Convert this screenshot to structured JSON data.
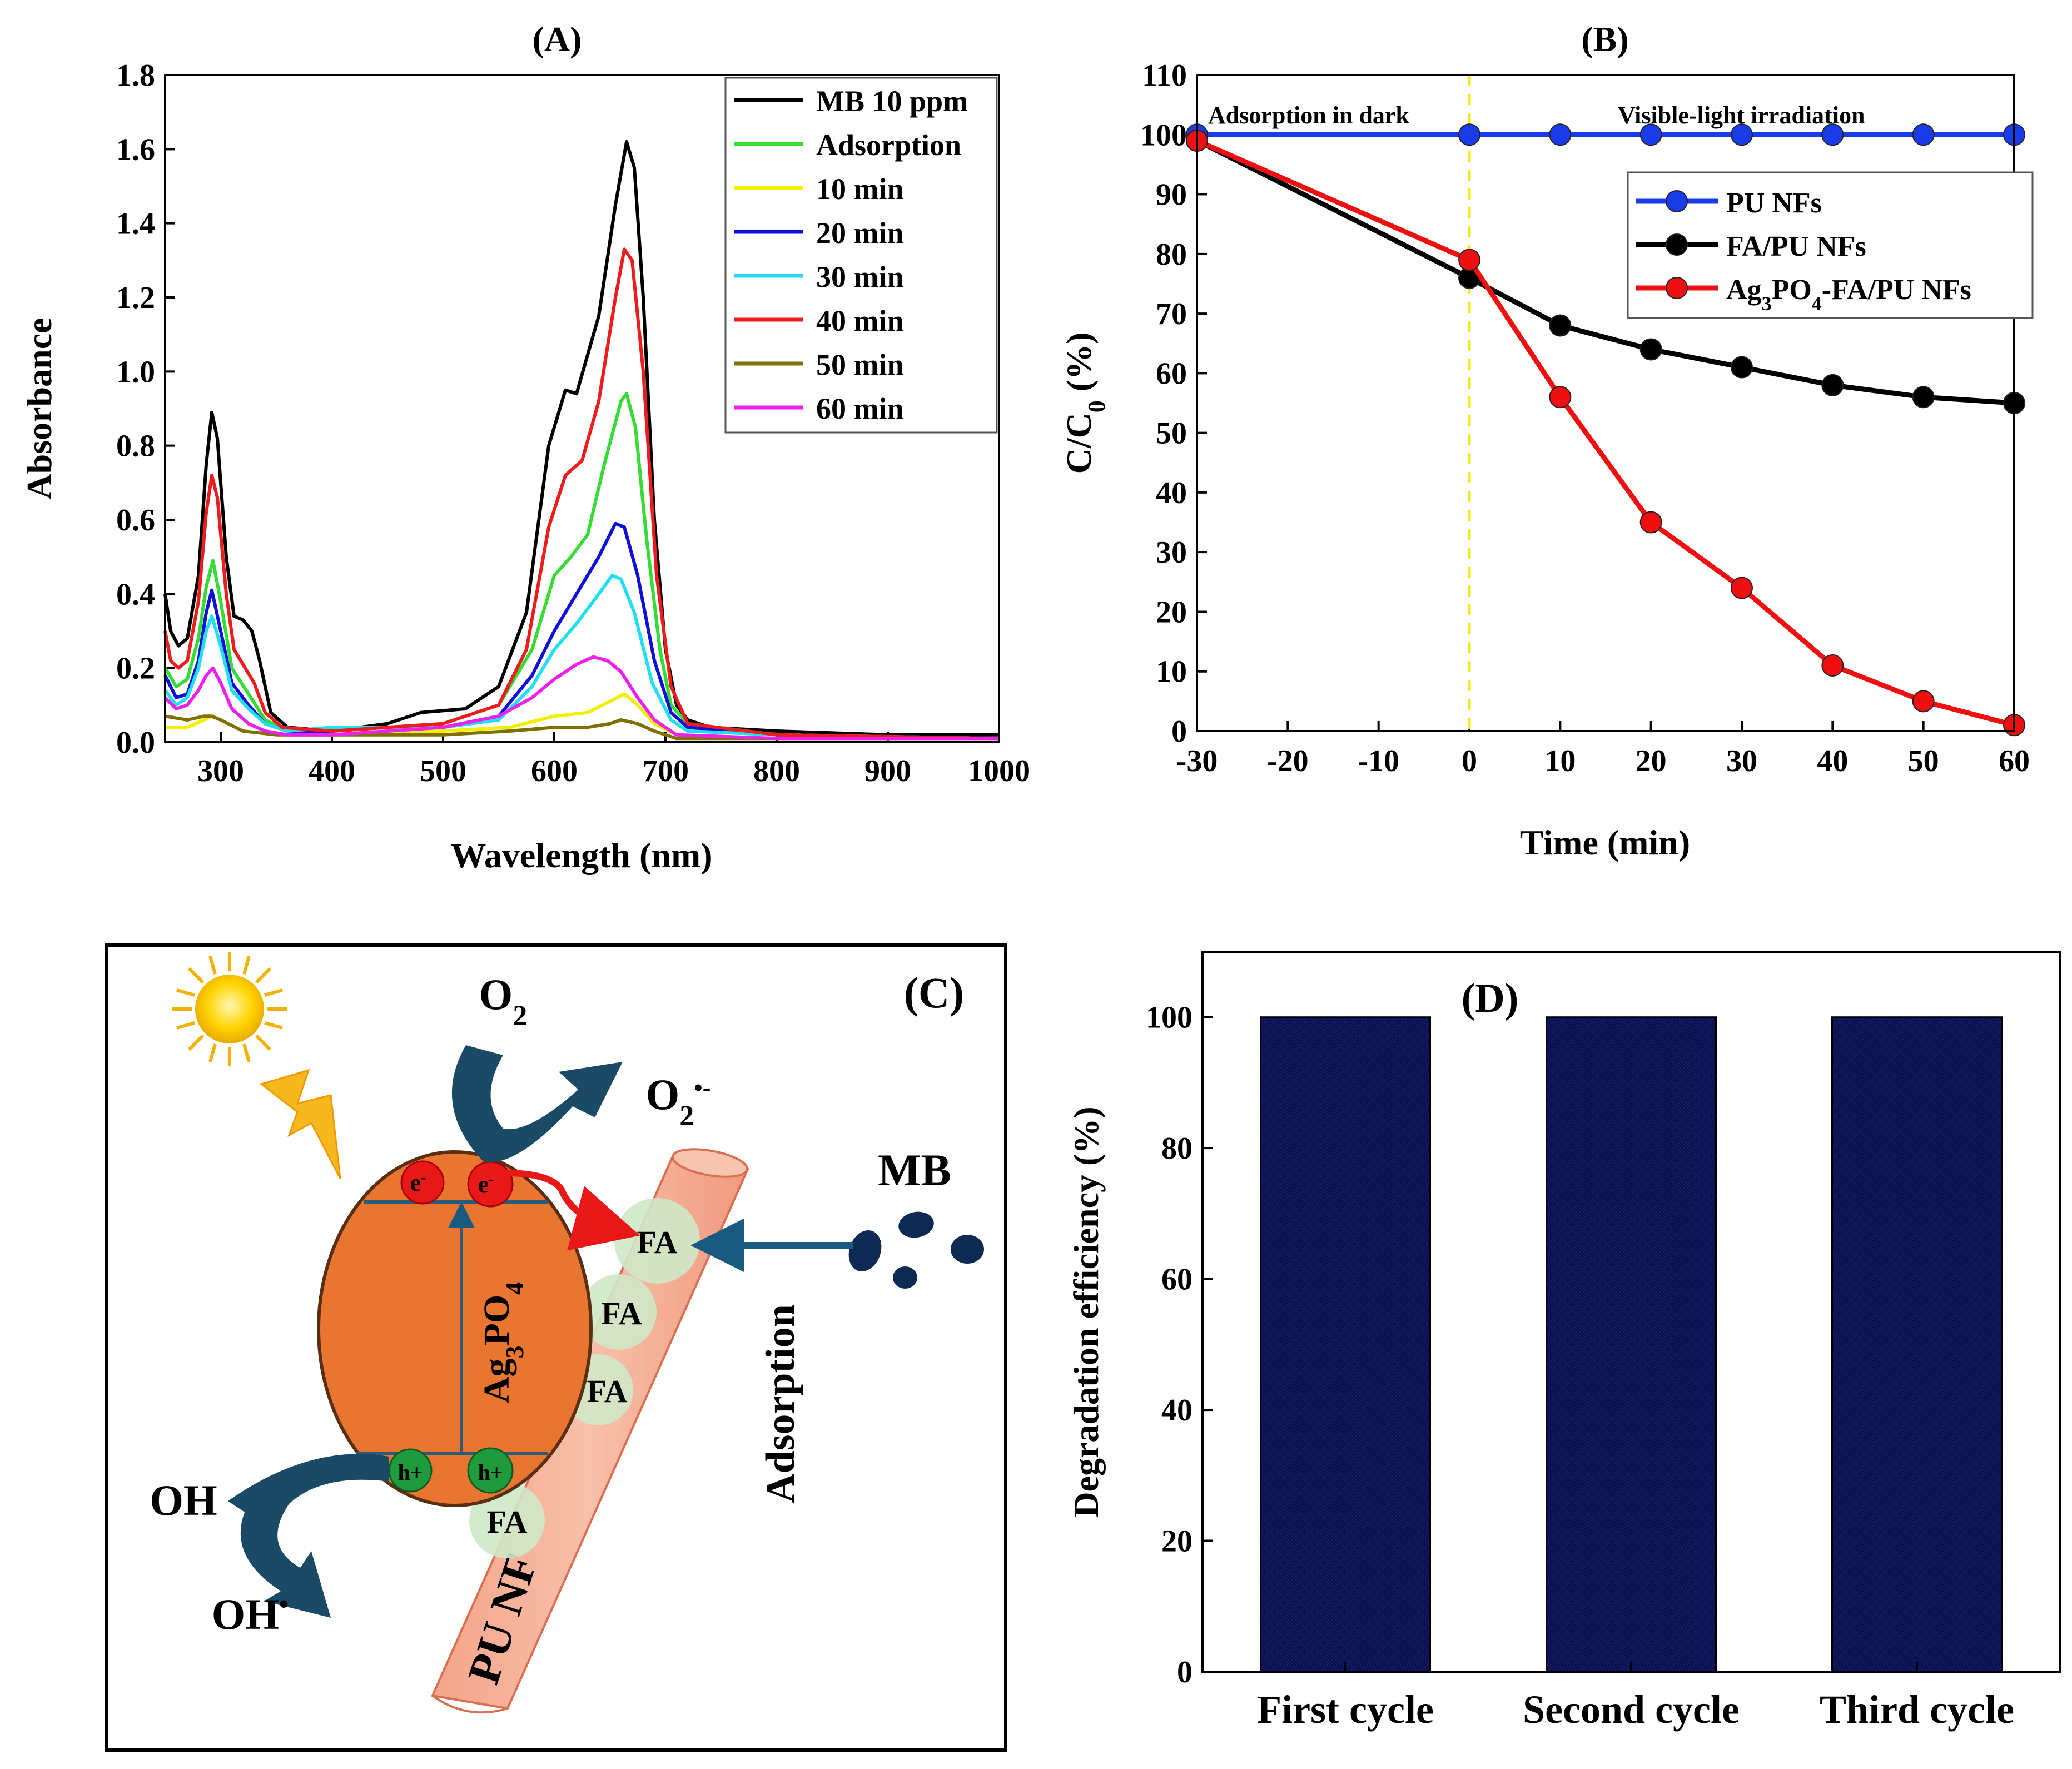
{
  "panels": {
    "A": {
      "label": "(A)"
    },
    "B": {
      "label": "(B)"
    },
    "C": {
      "label": "(C)"
    },
    "D": {
      "label": "(D)"
    }
  },
  "colors": {
    "mb": "#000000",
    "adsorption": "#33dd33",
    "t10": "#f0f000",
    "t20": "#1010d8",
    "t30": "#20e0f0",
    "t40": "#ee1c1c",
    "t50": "#807000",
    "t60": "#ee20ee",
    "pu": "#1a3be8",
    "fa": "#000000",
    "ag": "#ee1010",
    "bar": "#0b0f4f",
    "ag3po4": "#e87530",
    "fiber": "#f4a48a",
    "fa_bubble": "#cfe8c8",
    "arrow_dark": "#1b4a66",
    "hole": "#1f9a3c",
    "electron": "#e81818"
  },
  "chart_data": [
    {
      "id": "A",
      "type": "line",
      "title": "(A)",
      "xlabel": "Wavelength (nm)",
      "ylabel": "Absorbance",
      "xlim": [
        250,
        1000
      ],
      "ylim": [
        0,
        1.8
      ],
      "xticks": [
        300,
        400,
        500,
        600,
        700,
        800,
        900,
        1000
      ],
      "yticks": [
        0.0,
        0.2,
        0.4,
        0.6,
        0.8,
        1.0,
        1.2,
        1.4,
        1.6,
        1.8
      ],
      "legend_position": "top-right",
      "series": [
        {
          "name": "MB 10 ppm",
          "color_key": "mb",
          "points": [
            [
              250,
              0.4
            ],
            [
              255,
              0.3
            ],
            [
              262,
              0.26
            ],
            [
              270,
              0.28
            ],
            [
              280,
              0.45
            ],
            [
              287,
              0.75
            ],
            [
              292,
              0.89
            ],
            [
              297,
              0.82
            ],
            [
              305,
              0.5
            ],
            [
              312,
              0.34
            ],
            [
              320,
              0.33
            ],
            [
              328,
              0.3
            ],
            [
              335,
              0.22
            ],
            [
              345,
              0.08
            ],
            [
              360,
              0.04
            ],
            [
              400,
              0.03
            ],
            [
              450,
              0.05
            ],
            [
              480,
              0.08
            ],
            [
              520,
              0.09
            ],
            [
              550,
              0.15
            ],
            [
              575,
              0.35
            ],
            [
              595,
              0.8
            ],
            [
              610,
              0.95
            ],
            [
              620,
              0.94
            ],
            [
              640,
              1.15
            ],
            [
              655,
              1.45
            ],
            [
              665,
              1.62
            ],
            [
              672,
              1.55
            ],
            [
              680,
              1.2
            ],
            [
              690,
              0.6
            ],
            [
              700,
              0.25
            ],
            [
              710,
              0.1
            ],
            [
              720,
              0.06
            ],
            [
              740,
              0.04
            ],
            [
              800,
              0.03
            ],
            [
              900,
              0.02
            ],
            [
              1000,
              0.02
            ]
          ]
        },
        {
          "name": "Adsorption",
          "color_key": "adsorption",
          "points": [
            [
              250,
              0.2
            ],
            [
              260,
              0.15
            ],
            [
              270,
              0.17
            ],
            [
              280,
              0.28
            ],
            [
              287,
              0.42
            ],
            [
              293,
              0.49
            ],
            [
              300,
              0.38
            ],
            [
              310,
              0.2
            ],
            [
              325,
              0.13
            ],
            [
              340,
              0.06
            ],
            [
              360,
              0.03
            ],
            [
              400,
              0.03
            ],
            [
              450,
              0.04
            ],
            [
              500,
              0.05
            ],
            [
              550,
              0.1
            ],
            [
              580,
              0.25
            ],
            [
              600,
              0.45
            ],
            [
              615,
              0.5
            ],
            [
              630,
              0.56
            ],
            [
              645,
              0.75
            ],
            [
              660,
              0.92
            ],
            [
              665,
              0.94
            ],
            [
              673,
              0.85
            ],
            [
              683,
              0.55
            ],
            [
              695,
              0.25
            ],
            [
              705,
              0.1
            ],
            [
              720,
              0.05
            ],
            [
              800,
              0.02
            ],
            [
              1000,
              0.01
            ]
          ]
        },
        {
          "name": "10 min",
          "color_key": "t10",
          "points": [
            [
              250,
              0.04
            ],
            [
              270,
              0.04
            ],
            [
              285,
              0.06
            ],
            [
              292,
              0.07
            ],
            [
              300,
              0.06
            ],
            [
              320,
              0.03
            ],
            [
              350,
              0.02
            ],
            [
              400,
              0.02
            ],
            [
              500,
              0.03
            ],
            [
              560,
              0.04
            ],
            [
              600,
              0.07
            ],
            [
              630,
              0.08
            ],
            [
              650,
              0.11
            ],
            [
              663,
              0.13
            ],
            [
              675,
              0.1
            ],
            [
              690,
              0.05
            ],
            [
              710,
              0.02
            ],
            [
              800,
              0.01
            ],
            [
              1000,
              0.01
            ]
          ]
        },
        {
          "name": "20 min",
          "color_key": "t20",
          "points": [
            [
              250,
              0.18
            ],
            [
              260,
              0.12
            ],
            [
              270,
              0.13
            ],
            [
              280,
              0.22
            ],
            [
              287,
              0.35
            ],
            [
              292,
              0.41
            ],
            [
              300,
              0.3
            ],
            [
              310,
              0.16
            ],
            [
              325,
              0.1
            ],
            [
              340,
              0.05
            ],
            [
              360,
              0.03
            ],
            [
              400,
              0.03
            ],
            [
              450,
              0.04
            ],
            [
              500,
              0.04
            ],
            [
              550,
              0.07
            ],
            [
              580,
              0.18
            ],
            [
              600,
              0.3
            ],
            [
              620,
              0.4
            ],
            [
              640,
              0.5
            ],
            [
              655,
              0.59
            ],
            [
              663,
              0.58
            ],
            [
              675,
              0.45
            ],
            [
              690,
              0.22
            ],
            [
              705,
              0.08
            ],
            [
              720,
              0.04
            ],
            [
              800,
              0.02
            ],
            [
              1000,
              0.01
            ]
          ]
        },
        {
          "name": "30 min",
          "color_key": "t30",
          "points": [
            [
              250,
              0.14
            ],
            [
              260,
              0.1
            ],
            [
              270,
              0.12
            ],
            [
              280,
              0.2
            ],
            [
              287,
              0.3
            ],
            [
              292,
              0.34
            ],
            [
              300,
              0.26
            ],
            [
              310,
              0.14
            ],
            [
              325,
              0.09
            ],
            [
              340,
              0.05
            ],
            [
              360,
              0.03
            ],
            [
              400,
              0.04
            ],
            [
              450,
              0.04
            ],
            [
              500,
              0.04
            ],
            [
              550,
              0.06
            ],
            [
              580,
              0.15
            ],
            [
              600,
              0.25
            ],
            [
              620,
              0.32
            ],
            [
              640,
              0.4
            ],
            [
              652,
              0.45
            ],
            [
              660,
              0.44
            ],
            [
              672,
              0.35
            ],
            [
              688,
              0.16
            ],
            [
              705,
              0.06
            ],
            [
              720,
              0.03
            ],
            [
              800,
              0.02
            ],
            [
              1000,
              0.01
            ]
          ]
        },
        {
          "name": "40 min",
          "color_key": "t40",
          "points": [
            [
              250,
              0.3
            ],
            [
              255,
              0.22
            ],
            [
              262,
              0.2
            ],
            [
              270,
              0.22
            ],
            [
              280,
              0.38
            ],
            [
              287,
              0.62
            ],
            [
              292,
              0.72
            ],
            [
              297,
              0.66
            ],
            [
              305,
              0.4
            ],
            [
              312,
              0.25
            ],
            [
              322,
              0.2
            ],
            [
              330,
              0.16
            ],
            [
              340,
              0.08
            ],
            [
              355,
              0.04
            ],
            [
              400,
              0.03
            ],
            [
              450,
              0.04
            ],
            [
              500,
              0.05
            ],
            [
              550,
              0.1
            ],
            [
              575,
              0.25
            ],
            [
              595,
              0.58
            ],
            [
              610,
              0.72
            ],
            [
              625,
              0.76
            ],
            [
              640,
              0.92
            ],
            [
              655,
              1.2
            ],
            [
              663,
              1.33
            ],
            [
              670,
              1.3
            ],
            [
              680,
              1.0
            ],
            [
              692,
              0.45
            ],
            [
              705,
              0.15
            ],
            [
              720,
              0.05
            ],
            [
              800,
              0.02
            ],
            [
              1000,
              0.01
            ]
          ]
        },
        {
          "name": "50 min",
          "color_key": "t50",
          "points": [
            [
              250,
              0.07
            ],
            [
              270,
              0.06
            ],
            [
              285,
              0.07
            ],
            [
              292,
              0.07
            ],
            [
              300,
              0.06
            ],
            [
              320,
              0.03
            ],
            [
              350,
              0.02
            ],
            [
              400,
              0.02
            ],
            [
              500,
              0.02
            ],
            [
              560,
              0.03
            ],
            [
              600,
              0.04
            ],
            [
              630,
              0.04
            ],
            [
              650,
              0.05
            ],
            [
              660,
              0.06
            ],
            [
              675,
              0.05
            ],
            [
              690,
              0.03
            ],
            [
              710,
              0.01
            ],
            [
              800,
              0.01
            ],
            [
              1000,
              0.01
            ]
          ]
        },
        {
          "name": "60 min",
          "color_key": "t60",
          "points": [
            [
              250,
              0.12
            ],
            [
              260,
              0.09
            ],
            [
              270,
              0.1
            ],
            [
              280,
              0.14
            ],
            [
              287,
              0.18
            ],
            [
              293,
              0.2
            ],
            [
              300,
              0.16
            ],
            [
              310,
              0.09
            ],
            [
              325,
              0.05
            ],
            [
              340,
              0.03
            ],
            [
              360,
              0.02
            ],
            [
              400,
              0.02
            ],
            [
              450,
              0.03
            ],
            [
              500,
              0.04
            ],
            [
              550,
              0.07
            ],
            [
              580,
              0.12
            ],
            [
              600,
              0.17
            ],
            [
              620,
              0.21
            ],
            [
              635,
              0.23
            ],
            [
              648,
              0.22
            ],
            [
              660,
              0.19
            ],
            [
              675,
              0.12
            ],
            [
              690,
              0.06
            ],
            [
              710,
              0.02
            ],
            [
              800,
              0.01
            ],
            [
              1000,
              0.01
            ]
          ]
        }
      ]
    },
    {
      "id": "B",
      "type": "line",
      "title": "(B)",
      "xlabel": "Time (min)",
      "ylabel": "C/C0 (%)",
      "ylabel_main": "C/C",
      "ylabel_sub": "0",
      "ylabel_tail": " (%)",
      "xlim": [
        -30,
        60
      ],
      "ylim": [
        0,
        110
      ],
      "xticks": [
        -30,
        -20,
        -10,
        0,
        10,
        20,
        30,
        40,
        50,
        60
      ],
      "yticks": [
        0,
        10,
        20,
        30,
        40,
        50,
        60,
        70,
        80,
        90,
        100,
        110
      ],
      "annotations": {
        "dark": "Adsorption in dark",
        "light": "Visible-light irradiation"
      },
      "divider_x": 0,
      "legend_position": "right",
      "series": [
        {
          "name": "PU NFs",
          "color_key": "pu",
          "x": [
            -30,
            0,
            10,
            20,
            30,
            40,
            50,
            60
          ],
          "values": [
            100,
            100,
            100,
            100,
            100,
            100,
            100,
            100
          ]
        },
        {
          "name": "FA/PU NFs",
          "color_key": "fa",
          "x": [
            -30,
            0,
            10,
            20,
            30,
            40,
            50,
            60
          ],
          "values": [
            99,
            76,
            68,
            64,
            61,
            58,
            56,
            55
          ]
        },
        {
          "name": "Ag3PO4-FA/PU NFs",
          "color_key": "ag",
          "x": [
            -30,
            0,
            10,
            20,
            30,
            40,
            50,
            60
          ],
          "values": [
            99,
            79,
            56,
            35,
            24,
            11,
            5,
            1
          ]
        }
      ],
      "legend_ag": {
        "a": "Ag",
        "b": "3",
        "c": "PO",
        "d": "4",
        "e": "-FA/PU NFs"
      }
    },
    {
      "id": "D",
      "type": "bar",
      "title": "(D)",
      "xlabel": "",
      "ylabel": "Degradation efficiency (%)",
      "categories": [
        "First cycle",
        "Second cycle",
        "Third cycle"
      ],
      "values": [
        100,
        100,
        100
      ],
      "ylim": [
        0,
        110
      ],
      "yticks": [
        0,
        20,
        40,
        60,
        80,
        100
      ]
    }
  ],
  "diagram": {
    "o2": "O",
    "o2_sub": "2",
    "o2rad": "O",
    "o2rad_sub": "2",
    "o2rad_sup": "•-",
    "oh": "OH",
    "ohrad": "OH",
    "ohrad_sup": "•",
    "mb": "MB",
    "adsorption": "Adsorption",
    "ag3po4": "Ag",
    "ag3po4_3": "3",
    "ag3po4_po": "PO",
    "ag3po4_4": "4",
    "fa": "FA",
    "fiber": "PU NF",
    "electron": "e",
    "electron_sup": "-",
    "hole": "h+"
  }
}
